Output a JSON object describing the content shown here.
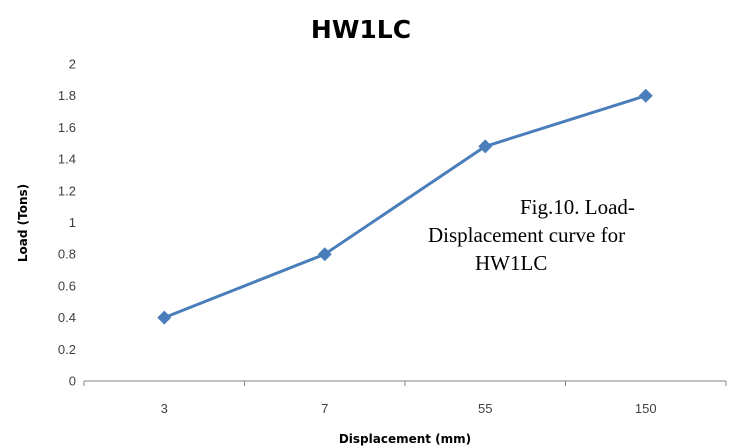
{
  "chart_data": {
    "type": "line",
    "title": "HW1LC",
    "xlabel": "Displacement (mm)",
    "ylabel": "Load (Tons)",
    "categories": [
      "3",
      "7",
      "55",
      "150"
    ],
    "series": [
      {
        "values": [
          0.4,
          0.8,
          1.48,
          1.8
        ]
      }
    ],
    "ylim": [
      0,
      2
    ],
    "yticks": [
      "0",
      "0.2",
      "0.4",
      "0.6",
      "0.8",
      "1",
      "1.2",
      "1.4",
      "1.6",
      "1.8",
      "2"
    ],
    "grid": false,
    "legend": "none",
    "line_color": "#4a7ebb",
    "marker": "diamond",
    "annotation": {
      "line1": "Fig.10. Load-",
      "line2": "Displacement curve for",
      "line3": "HW1LC"
    }
  }
}
